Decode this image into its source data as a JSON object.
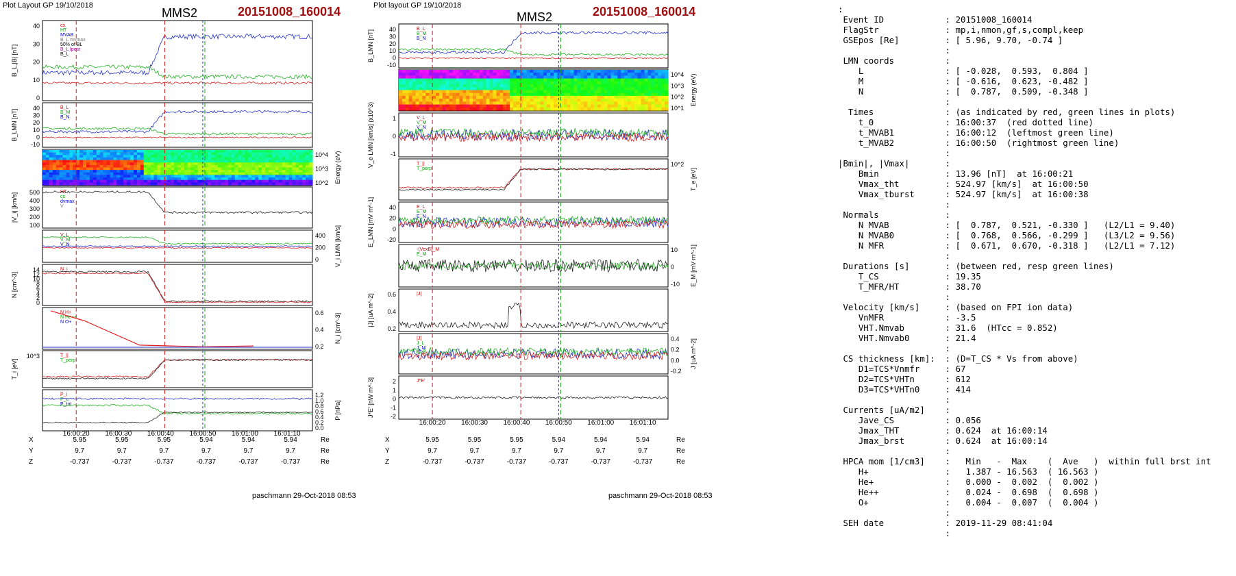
{
  "left_panel": {
    "header": "Plot Layout GP 19/10/2018",
    "spacecraft": "MMS2",
    "event": "20151008_160014",
    "footer": "paschmann 29-Oct-2018 08:53",
    "x_ticks": [
      "16:00:20",
      "16:00:30",
      "16:00:40",
      "16:00:50",
      "16:01:00",
      "16:01:10"
    ],
    "ephem": {
      "X": [
        "5.95",
        "5.95",
        "5.95",
        "5.94",
        "5.94",
        "5.94"
      ],
      "Y": [
        "9.7",
        "9.7",
        "9.7",
        "9.7",
        "9.7",
        "9.7"
      ],
      "Z": [
        "-0.737",
        "-0.737",
        "-0.737",
        "-0.737",
        "-0.737",
        "-0.737"
      ],
      "unit": "Re"
    },
    "panels": [
      {
        "id": "bl",
        "ylabel": "B_L,|B| [nT]",
        "ticks": [
          "40",
          "30",
          "20",
          "10",
          "0"
        ],
        "legend": [
          "cs",
          "HT",
          "MVAB",
          "B_L mvmax",
          "50% of BL",
          "B_L lpost",
          "B_L"
        ]
      },
      {
        "id": "blmn",
        "ylabel": "B_LMN [nT]",
        "ticks": [
          "40",
          "30",
          "20",
          "10",
          "0",
          "-10"
        ],
        "legend": [
          "B_L",
          "B_M",
          "B_N"
        ]
      },
      {
        "id": "spec",
        "ylabel": "Energy (eV)",
        "ticks": [
          "10^4",
          "10^3",
          "10^2"
        ]
      },
      {
        "id": "vi",
        "ylabel": "|V_i| [km/s]",
        "ticks": [
          "500",
          "400",
          "300",
          "200",
          "100"
        ],
        "legend": [
          "HT",
          "cs",
          "dvmax",
          "V"
        ]
      },
      {
        "id": "vlmn",
        "ylabel": "V_i LMN [km/s]",
        "ticks": [
          "400",
          "200",
          "0"
        ],
        "legend": [
          "V_L",
          "V_M",
          "V_N"
        ]
      },
      {
        "id": "n",
        "ylabel": "N [cm^-3]",
        "ticks": [
          "14",
          "12",
          "10",
          "8",
          "6",
          "4",
          "2",
          "0"
        ],
        "legend": [
          "N_i"
        ]
      },
      {
        "id": "ni",
        "ylabel": "N_i [cm^-3]",
        "ticks": [
          "0.6",
          "0.4",
          "0.2"
        ],
        "legend": [
          "N H+",
          "N He++",
          "N O+"
        ]
      },
      {
        "id": "ti",
        "ylabel": "T_i [eV]",
        "ticks": [
          "10^3"
        ],
        "legend": [
          "T_||",
          "T_perp"
        ]
      },
      {
        "id": "p",
        "ylabel": "P [nPa]",
        "ticks": [
          "1.2",
          "1.0",
          "0.8",
          "0.6",
          "0.4",
          "0.2",
          "0.0"
        ],
        "legend": [
          "P_i",
          "P_e",
          "P_tot"
        ]
      }
    ]
  },
  "right_panel": {
    "header": "Plot layout GP 19/10/2018",
    "spacecraft": "MMS2",
    "event": "20151008_160014",
    "footer": "paschmann 29-Oct-2018 08:53",
    "x_ticks": [
      "16:00:20",
      "16:00:30",
      "16:00:40",
      "16:00:50",
      "16:01:00",
      "16:01:10"
    ],
    "ephem": {
      "X": [
        "5.95",
        "5.95",
        "5.95",
        "5.94",
        "5.94",
        "5.94"
      ],
      "Y": [
        "9.7",
        "9.7",
        "9.7",
        "9.7",
        "9.7",
        "9.7"
      ],
      "Z": [
        "-0.737",
        "-0.737",
        "-0.737",
        "-0.737",
        "-0.737",
        "-0.737"
      ],
      "unit": "Re"
    },
    "panels": [
      {
        "id": "blmn",
        "ylabel": "B_LMN [nT]",
        "ticks": [
          "40",
          "30",
          "20",
          "10",
          "0",
          "-10"
        ],
        "legend": [
          "B_L",
          "B_M",
          "B_N"
        ]
      },
      {
        "id": "espec",
        "ylabel": "Energy (eV)",
        "ticks": [
          "10^4",
          "10^3",
          "10^2",
          "10^1"
        ]
      },
      {
        "id": "ve",
        "ylabel": "V_e LMN [km/s] (x10^3)",
        "ticks": [
          "1",
          "0",
          "-1"
        ],
        "legend": [
          "V_L",
          "V_M",
          "V_N"
        ]
      },
      {
        "id": "te",
        "ylabel": "T_e [eV]",
        "ticks": [
          "10^2"
        ],
        "legend": [
          "T_||",
          "T_perp"
        ]
      },
      {
        "id": "elmn",
        "ylabel": "E_LMN [mV m^-1]",
        "ticks": [
          "40",
          "20",
          "0",
          "-20"
        ],
        "legend": [
          "E_L",
          "E_M",
          "E_N"
        ]
      },
      {
        "id": "em",
        "ylabel": "E_M [mV m^-1]",
        "ticks": [
          "10",
          "0",
          "-10"
        ],
        "legend": [
          "-(VexB)_M",
          "E_M"
        ]
      },
      {
        "id": "jabs",
        "ylabel": "|J| [uA m^-2]",
        "ticks": [
          "0.6",
          "0.4",
          "0.2"
        ],
        "legend": [
          "|J|"
        ]
      },
      {
        "id": "jlmn",
        "ylabel": "J [uA m^-2]",
        "ticks": [
          "0.4",
          "0.2",
          "0.0",
          "-0.2"
        ],
        "legend": [
          "|J|",
          "J_L",
          "J_M",
          "J_N"
        ]
      },
      {
        "id": "je",
        "ylabel": "J*E' [nW m^-3]",
        "ticks": [
          "2",
          "1",
          "0",
          "-1",
          "-2"
        ],
        "legend": [
          "J*E'"
        ]
      }
    ]
  },
  "info_lines": [
    ":",
    " Event ID            : 20151008_160014",
    " FlagStr             : mp,i,nmon,gf,s,compl,keep",
    " GSEpos [Re]         : [ 5.96, 9.70, -0.74 ]",
    "                     :",
    " LMN coords          :",
    "    L                : [ -0.028,  0.593,  0.804 ]",
    "    M                : [ -0.616,  0.623, -0.482 ]",
    "    N                : [  0.787,  0.509, -0.348 ]",
    "                     :",
    "  Times              : (as indicated by red, green lines in plots)",
    "    t_0              : 16:00:37  (red dotted line)",
    "    t_MVAB1          : 16:00:12  (leftmost green line)",
    "    t_MVAB2          : 16:00:50  (rightmost green line)",
    "                     :",
    "|Bmin|, |Vmax|       :",
    "    Bmin             : 13.96 [nT]  at 16:00:21",
    "    Vmax_tht         : 524.97 [km/s]  at 16:00:50",
    "    Vmax_tburst      : 524.97 [km/s]  at 16:00:38",
    "                     :",
    " Normals             :",
    "    N MVAB           : [  0.787,  0.521, -0.330 ]   (L2/L1 = 9.40)",
    "    N MVAB0          : [  0.768,  0.566, -0.299 ]   (L3/L2 = 9.56)",
    "    N MFR            : [  0.671,  0.670, -0.318 ]   (L2/L1 = 7.12)",
    "                     :",
    " Durations [s]       : (between red, resp green lines)",
    "    T_CS             : 19.35",
    "    T_MFR/HT         : 38.70",
    "                     :",
    " Velocity [km/s]     : (based on FPI ion data)",
    "    VnMFR            : -3.5",
    "    VHT.Nmvab        : 31.6  (HTcc = 0.852)",
    "    VHT.Nmvab0       : 21.4",
    "                     :",
    " CS thickness [km]:  : (D=T_CS * Vs from above)",
    "    D1=TCS*Vnmfr     : 67",
    "    D2=TCS*VHTn      : 612",
    "    D3=TCS*VHTn0     : 414",
    "                     :",
    " Currents [uA/m2]    :",
    "    Jave_CS          : 0.056",
    "    Jmax_THT         : 0.624  at 16:00:14",
    "    Jmax_brst        : 0.624  at 16:00:14",
    "                     :",
    " HPCA mom [1/cm3]    :   Min   -  Max    (  Ave   )  within full brst int",
    "    H+               :   1.387 - 16.563  ( 16.563 )",
    "    He+              :   0.000 -  0.002  (  0.002 )",
    "    He++             :   0.024 -  0.698  (  0.698 )",
    "    O+               :   0.004 -  0.007  (  0.004 )",
    "                     :",
    " SEH date            : 2019-11-29 08:41:04",
    "                     :"
  ],
  "chart_data": [
    {
      "type": "line",
      "title": "MMS2 20151008_160014",
      "x": [
        "16:00:12",
        "16:00:20",
        "16:00:30",
        "16:00:37",
        "16:00:40",
        "16:00:45",
        "16:00:50",
        "16:01:00",
        "16:01:10",
        "16:01:15"
      ],
      "ylabel": "B_L,|B| [nT]",
      "ylim": [
        0,
        45
      ],
      "series": [
        {
          "name": "B_L",
          "values": [
            14,
            16,
            20,
            26,
            38,
            41,
            39,
            38,
            33,
            31
          ]
        },
        {
          "name": "50% of BL",
          "values": [
            27.5,
            27.5,
            27.5,
            27.5,
            27.5,
            27.5,
            27.5,
            27.5,
            27.5,
            27.5
          ]
        }
      ]
    },
    {
      "type": "line",
      "x": [
        "16:00:12",
        "16:00:20",
        "16:00:30",
        "16:00:38",
        "16:00:40",
        "16:00:45",
        "16:00:50",
        "16:01:00",
        "16:01:10",
        "16:01:15"
      ],
      "ylabel": "|V_i| [km/s]",
      "ylim": [
        50,
        550
      ],
      "series": [
        {
          "name": "V",
          "values": [
            480,
            470,
            490,
            500,
            380,
            230,
            210,
            230,
            200,
            220
          ]
        }
      ]
    },
    {
      "type": "line",
      "x": [
        "16:00:12",
        "16:00:20",
        "16:00:30",
        "16:00:37",
        "16:00:40",
        "16:00:45",
        "16:00:50",
        "16:01:00",
        "16:01:10",
        "16:01:15"
      ],
      "ylabel": "N [cm^-3]",
      "ylim": [
        0,
        14
      ],
      "series": [
        {
          "name": "N_i",
          "values": [
            12,
            11,
            10,
            9,
            3,
            2,
            1.6,
            1.7,
            1.4,
            1.6
          ]
        }
      ]
    },
    {
      "type": "line",
      "x": [
        "16:00:12",
        "16:00:20",
        "16:00:30",
        "16:00:38",
        "16:00:40",
        "16:00:45",
        "16:00:50",
        "16:01:00",
        "16:01:10",
        "16:01:15"
      ],
      "ylabel": "|J| [uA m^-2]",
      "ylim": [
        0,
        0.6
      ],
      "series": [
        {
          "name": "|J|",
          "values": [
            0.08,
            0.12,
            0.18,
            0.25,
            0.55,
            0.1,
            0.05,
            0.06,
            0.03,
            0.03
          ]
        }
      ]
    }
  ]
}
